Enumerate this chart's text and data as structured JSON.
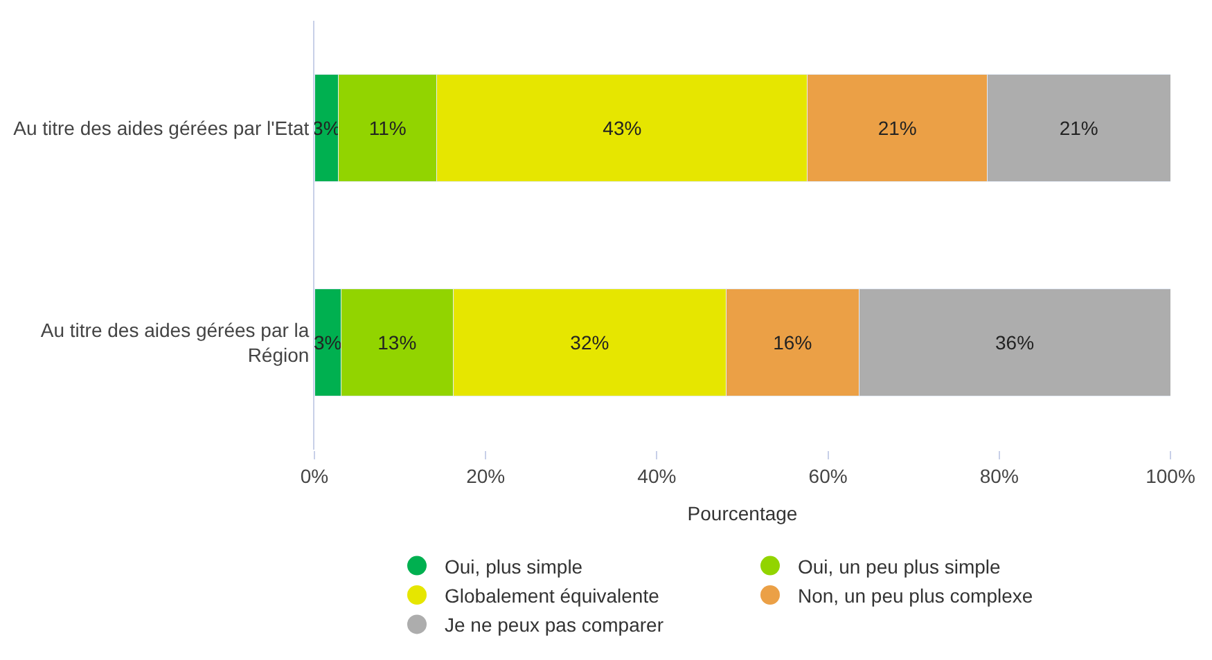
{
  "chart_data": {
    "type": "bar",
    "orientation": "horizontal",
    "stacked": true,
    "categories": [
      "Au titre des aides gérées par l'Etat",
      "Au titre des aides gérées par la\nRégion"
    ],
    "series": [
      {
        "name": "Oui, plus simple",
        "color": "#00b050",
        "values": [
          2.8,
          3.1
        ],
        "value_labels": [
          "3%",
          "3%"
        ]
      },
      {
        "name": "Oui, un peu plus simple",
        "color": "#92d400",
        "values": [
          11.5,
          13.1
        ],
        "value_labels": [
          "11%",
          "13%"
        ]
      },
      {
        "name": "Globalement équivalente",
        "color": "#e6e600",
        "values": [
          43.3,
          31.9
        ],
        "value_labels": [
          "43%",
          "32%"
        ]
      },
      {
        "name": "Non, un peu plus complexe",
        "color": "#eba046",
        "values": [
          21.0,
          15.5
        ],
        "value_labels": [
          "21%",
          "16%"
        ]
      },
      {
        "name": "Je ne peux pas comparer",
        "color": "#adadad",
        "values": [
          21.4,
          36.4
        ],
        "value_labels": [
          "21%",
          "36%"
        ]
      }
    ],
    "xlabel": "Pourcentage",
    "xlim": [
      0,
      100
    ],
    "xticks": [
      {
        "value": 0,
        "label": "0%"
      },
      {
        "value": 20,
        "label": "20%"
      },
      {
        "value": 40,
        "label": "40%"
      },
      {
        "value": 60,
        "label": "60%"
      },
      {
        "value": 80,
        "label": "80%"
      },
      {
        "value": 100,
        "label": "100%"
      }
    ],
    "legend": "bottom",
    "marker": "circle"
  }
}
